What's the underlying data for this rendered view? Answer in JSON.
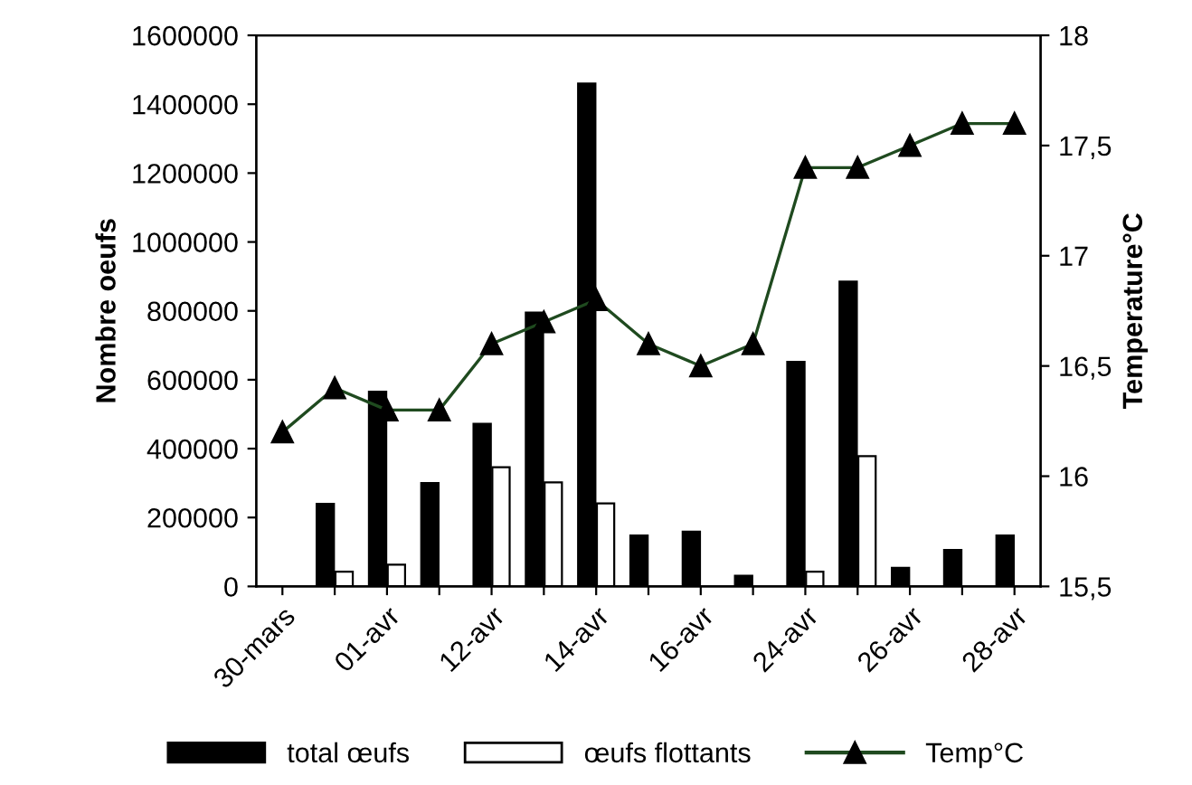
{
  "chart_data": {
    "type": "bar",
    "ylabel": "Nombre oeufs",
    "y2label": "Temperature°C",
    "categories": [
      "30-mars",
      null,
      "01-avr",
      null,
      "12-avr",
      null,
      "14-avr",
      null,
      "16-avr",
      null,
      "24-avr",
      null,
      "26-avr",
      null,
      "28-avr"
    ],
    "series": [
      {
        "name": "total œufs",
        "color": "#000000",
        "values": [
          null,
          240000,
          565000,
          300000,
          472000,
          795000,
          1460000,
          148000,
          159000,
          31000,
          652000,
          885000,
          54000,
          106000,
          148000
        ]
      },
      {
        "name": "œufs flottants",
        "color": "#ffffff",
        "values": [
          null,
          43000,
          63000,
          null,
          346000,
          302000,
          241000,
          null,
          null,
          null,
          43000,
          378000,
          null,
          null,
          null
        ]
      },
      {
        "name": "Temp°C",
        "type": "line",
        "axis": "y2",
        "color": "#1f4a1f",
        "marker": "triangle",
        "values": [
          16.2,
          16.4,
          16.3,
          16.3,
          16.6,
          16.7,
          16.8,
          16.6,
          16.5,
          16.6,
          17.4,
          17.4,
          17.5,
          17.6,
          17.6
        ]
      }
    ],
    "ylim": [
      0,
      1600000
    ],
    "yticks": [
      0,
      200000,
      400000,
      600000,
      800000,
      1000000,
      1200000,
      1400000,
      1600000
    ],
    "y2lim": [
      15.5,
      18
    ],
    "y2ticks": [
      {
        "value": 15.5,
        "label": "15,5"
      },
      16,
      {
        "value": 16.5,
        "label": "16,5"
      },
      17,
      {
        "value": 17.5,
        "label": "17,5"
      },
      18
    ],
    "grid": false,
    "legend": "bottom"
  }
}
